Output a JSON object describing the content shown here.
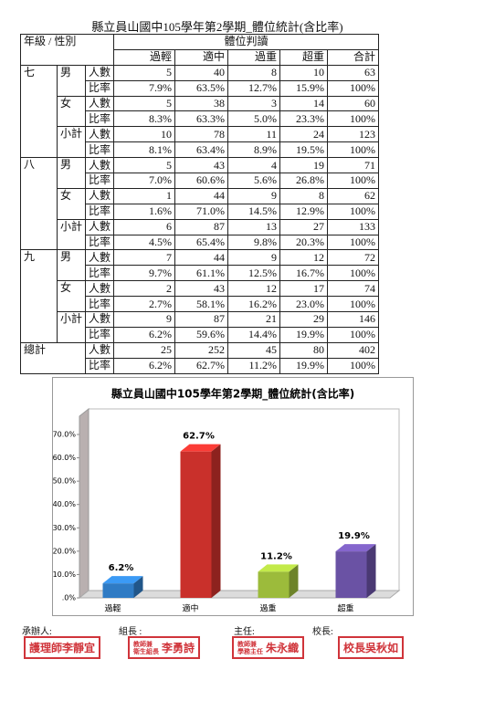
{
  "table": {
    "title": "縣立員山國中105學年第2學期_體位統計(含比率)",
    "header": {
      "group_col": "年級 / 性別",
      "span": "體位判讀",
      "columns": [
        "過輕",
        "適中",
        "過重",
        "超重",
        "合計"
      ]
    },
    "grades": [
      {
        "grade": "七",
        "groups": [
          {
            "label": "男",
            "rows": [
              {
                "kind": "人數",
                "cells": [
                  "5",
                  "40",
                  "8",
                  "10",
                  "63"
                ]
              },
              {
                "kind": "比率",
                "cells": [
                  "7.9%",
                  "63.5%",
                  "12.7%",
                  "15.9%",
                  "100%"
                ]
              }
            ]
          },
          {
            "label": "女",
            "rows": [
              {
                "kind": "人數",
                "cells": [
                  "5",
                  "38",
                  "3",
                  "14",
                  "60"
                ]
              },
              {
                "kind": "比率",
                "cells": [
                  "8.3%",
                  "63.3%",
                  "5.0%",
                  "23.3%",
                  "100%"
                ]
              }
            ]
          },
          {
            "label": "小計",
            "rows": [
              {
                "kind": "人數",
                "cells": [
                  "10",
                  "78",
                  "11",
                  "24",
                  "123"
                ]
              },
              {
                "kind": "比率",
                "cells": [
                  "8.1%",
                  "63.4%",
                  "8.9%",
                  "19.5%",
                  "100%"
                ]
              }
            ]
          }
        ]
      },
      {
        "grade": "八",
        "groups": [
          {
            "label": "男",
            "rows": [
              {
                "kind": "人數",
                "cells": [
                  "5",
                  "43",
                  "4",
                  "19",
                  "71"
                ]
              },
              {
                "kind": "比率",
                "cells": [
                  "7.0%",
                  "60.6%",
                  "5.6%",
                  "26.8%",
                  "100%"
                ]
              }
            ]
          },
          {
            "label": "女",
            "rows": [
              {
                "kind": "人數",
                "cells": [
                  "1",
                  "44",
                  "9",
                  "8",
                  "62"
                ]
              },
              {
                "kind": "比率",
                "cells": [
                  "1.6%",
                  "71.0%",
                  "14.5%",
                  "12.9%",
                  "100%"
                ]
              }
            ]
          },
          {
            "label": "小計",
            "rows": [
              {
                "kind": "人數",
                "cells": [
                  "6",
                  "87",
                  "13",
                  "27",
                  "133"
                ]
              },
              {
                "kind": "比率",
                "cells": [
                  "4.5%",
                  "65.4%",
                  "9.8%",
                  "20.3%",
                  "100%"
                ]
              }
            ]
          }
        ]
      },
      {
        "grade": "九",
        "groups": [
          {
            "label": "男",
            "rows": [
              {
                "kind": "人數",
                "cells": [
                  "7",
                  "44",
                  "9",
                  "12",
                  "72"
                ]
              },
              {
                "kind": "比率",
                "cells": [
                  "9.7%",
                  "61.1%",
                  "12.5%",
                  "16.7%",
                  "100%"
                ]
              }
            ]
          },
          {
            "label": "女",
            "rows": [
              {
                "kind": "人數",
                "cells": [
                  "2",
                  "43",
                  "12",
                  "17",
                  "74"
                ]
              },
              {
                "kind": "比率",
                "cells": [
                  "2.7%",
                  "58.1%",
                  "16.2%",
                  "23.0%",
                  "100%"
                ]
              }
            ]
          },
          {
            "label": "小計",
            "rows": [
              {
                "kind": "人數",
                "cells": [
                  "9",
                  "87",
                  "21",
                  "29",
                  "146"
                ]
              },
              {
                "kind": "比率",
                "cells": [
                  "6.2%",
                  "59.6%",
                  "14.4%",
                  "19.9%",
                  "100%"
                ]
              }
            ]
          }
        ]
      }
    ],
    "total": {
      "label": "總計",
      "rows": [
        {
          "kind": "人數",
          "cells": [
            "25",
            "252",
            "45",
            "80",
            "402"
          ]
        },
        {
          "kind": "比率",
          "cells": [
            "6.2%",
            "62.7%",
            "11.2%",
            "19.9%",
            "100%"
          ]
        }
      ]
    }
  },
  "chart_data": {
    "type": "bar",
    "title": "縣立員山國中105學年第2學期_體位統計(含比率)",
    "categories": [
      "過輕",
      "適中",
      "過重",
      "超重"
    ],
    "values": [
      6.2,
      62.7,
      11.2,
      19.9
    ],
    "value_labels": [
      "6.2%",
      "62.7%",
      "11.2%",
      "19.9%"
    ],
    "colors": [
      "#2f7bc4",
      "#c9302b",
      "#9cbb3b",
      "#6a52a4"
    ],
    "ylim": [
      0,
      70
    ],
    "yticks": [
      {
        "value": 0,
        "label": ".0%"
      },
      {
        "value": 10,
        "label": "10.0%"
      },
      {
        "value": 20,
        "label": "20.0%"
      },
      {
        "value": 30,
        "label": "30.0%"
      },
      {
        "value": 40,
        "label": "40.0%"
      },
      {
        "value": 50,
        "label": "50.0%"
      },
      {
        "value": 60,
        "label": "60.0%"
      },
      {
        "value": 70,
        "label": "70.0%"
      }
    ]
  },
  "signatures": [
    {
      "role": "承辦人:",
      "stamp": [
        "護理師李靜宜"
      ]
    },
    {
      "role": "組長 :",
      "stamp": [
        "教師兼",
        "衛生組長",
        "李勇詩"
      ]
    },
    {
      "role": "主任:",
      "stamp": [
        "教師兼",
        "學務主任",
        "朱永織"
      ]
    },
    {
      "role": "校長:",
      "stamp": [
        "校長吳秋如"
      ]
    }
  ]
}
